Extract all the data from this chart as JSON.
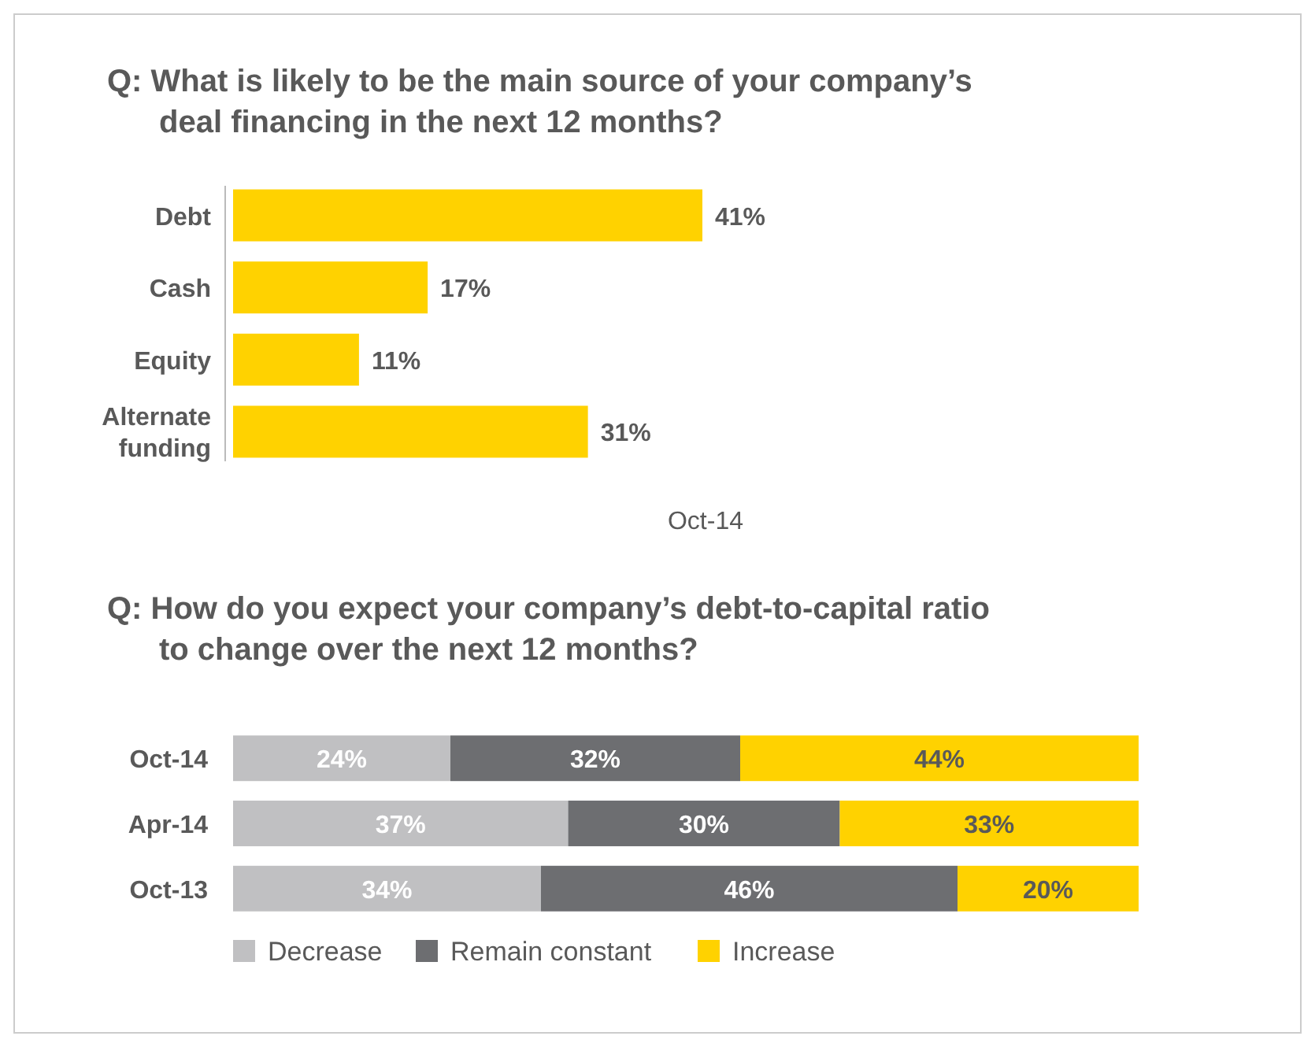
{
  "chart_data": [
    {
      "type": "bar",
      "orientation": "horizontal",
      "title": "Q:  What is likely to be the main source of your company’s deal financing in the next 12 months?",
      "xlabel": "Oct-14",
      "categories": [
        "Debt",
        "Cash",
        "Equity",
        "Alternate funding"
      ],
      "values": [
        41,
        17,
        11,
        31
      ],
      "color": "#ffd200",
      "value_labels": [
        "41%",
        "17%",
        "11%",
        "31%"
      ]
    },
    {
      "type": "bar",
      "orientation": "horizontal",
      "stacked": true,
      "title": "Q:  How do you expect your company’s debt-to-capital ratio to change over the next 12 months?",
      "categories": [
        "Oct-14",
        "Apr-14",
        "Oct-13"
      ],
      "legend": "bottom",
      "series": [
        {
          "name": "Decrease",
          "color": "#c0c0c2",
          "values": [
            24,
            37,
            34
          ],
          "value_labels": [
            "24%",
            "37%",
            "34%"
          ]
        },
        {
          "name": "Remain constant",
          "color": "#6d6e71",
          "values": [
            32,
            30,
            46
          ],
          "value_labels": [
            "32%",
            "30%",
            "46%"
          ]
        },
        {
          "name": "Increase",
          "color": "#ffd200",
          "values": [
            44,
            33,
            20
          ],
          "value_labels": [
            "44%",
            "33%",
            "20%"
          ]
        }
      ]
    }
  ]
}
